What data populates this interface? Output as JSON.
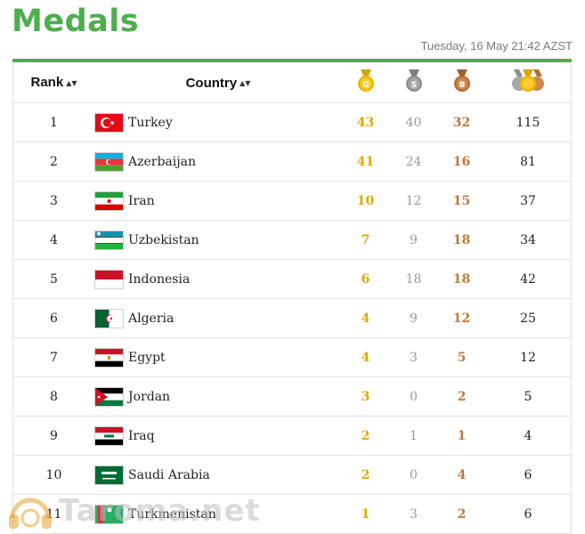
{
  "page": {
    "title": "Medals",
    "timestamp": "Tuesday, 16 May 21:42 AZST"
  },
  "header": {
    "rank_label": "Rank",
    "country_label": "Country",
    "sort_glyph": "▲▼"
  },
  "medal_icons": {
    "gold": "G",
    "silver": "S",
    "bronze": "B"
  },
  "colors": {
    "accent": "#4cae4c",
    "gold": "#e0a800",
    "silver": "#9a9a9a",
    "bronze": "#c0773a"
  },
  "rows": [
    {
      "rank": "1",
      "country": "Turkey",
      "gold": "43",
      "silver": "40",
      "bronze": "32",
      "total": "115"
    },
    {
      "rank": "2",
      "country": "Azerbaijan",
      "gold": "41",
      "silver": "24",
      "bronze": "16",
      "total": "81"
    },
    {
      "rank": "3",
      "country": "Iran",
      "gold": "10",
      "silver": "12",
      "bronze": "15",
      "total": "37"
    },
    {
      "rank": "4",
      "country": "Uzbekistan",
      "gold": "7",
      "silver": "9",
      "bronze": "18",
      "total": "34"
    },
    {
      "rank": "5",
      "country": "Indonesia",
      "gold": "6",
      "silver": "18",
      "bronze": "18",
      "total": "42"
    },
    {
      "rank": "6",
      "country": "Algeria",
      "gold": "4",
      "silver": "9",
      "bronze": "12",
      "total": "25"
    },
    {
      "rank": "7",
      "country": "Egypt",
      "gold": "4",
      "silver": "3",
      "bronze": "5",
      "total": "12"
    },
    {
      "rank": "8",
      "country": "Jordan",
      "gold": "3",
      "silver": "0",
      "bronze": "2",
      "total": "5"
    },
    {
      "rank": "9",
      "country": "Iraq",
      "gold": "2",
      "silver": "1",
      "bronze": "1",
      "total": "4"
    },
    {
      "rank": "10",
      "country": "Saudi Arabia",
      "gold": "2",
      "silver": "0",
      "bronze": "4",
      "total": "6"
    },
    {
      "rank": "11",
      "country": "Turkmenistan",
      "gold": "1",
      "silver": "3",
      "bronze": "2",
      "total": "6"
    }
  ],
  "watermark": {
    "text": "Taroma.net"
  }
}
